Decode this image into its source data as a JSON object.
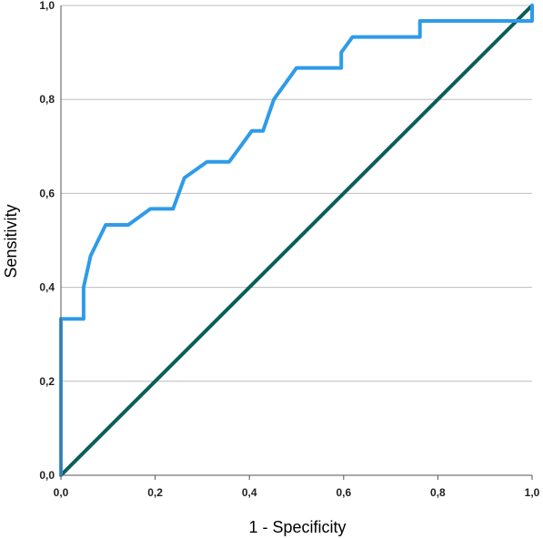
{
  "chart_data": {
    "type": "line",
    "title": "",
    "xlabel": "1 - Specificity",
    "ylabel": "Sensitivity",
    "xlim": [
      0,
      1
    ],
    "ylim": [
      0,
      1
    ],
    "x_ticks": [
      "0,0",
      "0,2",
      "0,4",
      "0,6",
      "0,8",
      "1,0"
    ],
    "y_ticks": [
      "0,0",
      "0,2",
      "0,4",
      "0,6",
      "0,8",
      "1,0"
    ],
    "grid": "horizontal",
    "legend": "none",
    "series": [
      {
        "color": "#2f9be8",
        "points": [
          [
            0.0,
            0.0
          ],
          [
            0.0,
            0.333
          ],
          [
            0.048,
            0.333
          ],
          [
            0.048,
            0.4
          ],
          [
            0.063,
            0.467
          ],
          [
            0.095,
            0.533
          ],
          [
            0.143,
            0.533
          ],
          [
            0.19,
            0.567
          ],
          [
            0.238,
            0.567
          ],
          [
            0.262,
            0.633
          ],
          [
            0.31,
            0.667
          ],
          [
            0.357,
            0.667
          ],
          [
            0.381,
            0.7
          ],
          [
            0.405,
            0.733
          ],
          [
            0.429,
            0.733
          ],
          [
            0.452,
            0.8
          ],
          [
            0.5,
            0.867
          ],
          [
            0.595,
            0.867
          ],
          [
            0.595,
            0.9
          ],
          [
            0.619,
            0.933
          ],
          [
            0.762,
            0.933
          ],
          [
            0.762,
            0.967
          ],
          [
            1.0,
            0.967
          ],
          [
            1.0,
            1.0
          ]
        ]
      },
      {
        "color": "#0b5e5a",
        "points": [
          [
            0,
            0
          ],
          [
            1,
            1
          ]
        ]
      }
    ]
  }
}
